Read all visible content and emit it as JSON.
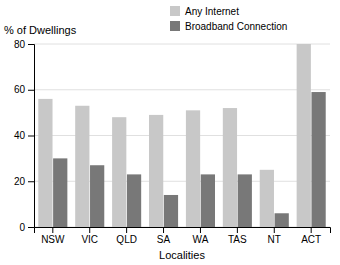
{
  "chart_data": {
    "type": "bar",
    "categories": [
      "NSW",
      "VIC",
      "QLD",
      "SA",
      "WA",
      "TAS",
      "NT",
      "ACT"
    ],
    "series": [
      {
        "name": "Any Internet",
        "color": "#c8c8c8",
        "values": [
          56,
          53,
          48,
          49,
          51,
          52,
          25,
          80
        ]
      },
      {
        "name": "Broadband Connection",
        "color": "#787878",
        "values": [
          30,
          27,
          23,
          14,
          23,
          23,
          6,
          59
        ]
      }
    ],
    "xlabel": "Localities",
    "ylabel": "% of Dwellings",
    "ylim": [
      0,
      80
    ],
    "yticks": [
      0,
      20,
      40,
      60,
      80
    ],
    "grid": true,
    "legend": "top"
  }
}
